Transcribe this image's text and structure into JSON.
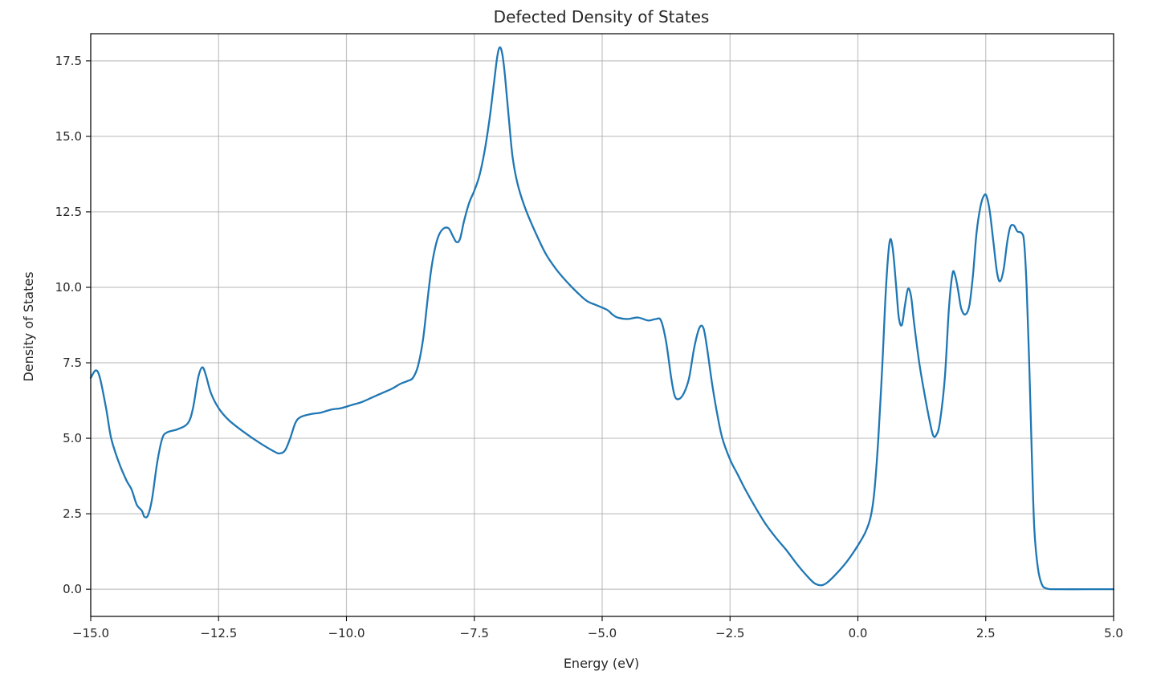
{
  "chart_data": {
    "type": "line",
    "title": "Defected Density of States",
    "xlabel": "Energy (eV)",
    "ylabel": "Density of States",
    "xlim": [
      -15.0,
      5.0
    ],
    "ylim": [
      -0.9,
      18.4
    ],
    "grid": true,
    "legend": "none",
    "xticks": [
      {
        "value": -15.0,
        "label": "−15.0"
      },
      {
        "value": -12.5,
        "label": "−12.5"
      },
      {
        "value": -10.0,
        "label": "−10.0"
      },
      {
        "value": -7.5,
        "label": "−7.5"
      },
      {
        "value": -5.0,
        "label": "−5.0"
      },
      {
        "value": -2.5,
        "label": "−2.5"
      },
      {
        "value": 0.0,
        "label": "0.0"
      },
      {
        "value": 2.5,
        "label": "2.5"
      },
      {
        "value": 5.0,
        "label": "5.0"
      }
    ],
    "yticks": [
      {
        "value": 0.0,
        "label": "0.0"
      },
      {
        "value": 2.5,
        "label": "2.5"
      },
      {
        "value": 5.0,
        "label": "5.0"
      },
      {
        "value": 7.5,
        "label": "7.5"
      },
      {
        "value": 10.0,
        "label": "10.0"
      },
      {
        "value": 12.5,
        "label": "12.5"
      },
      {
        "value": 15.0,
        "label": "15.0"
      },
      {
        "value": 17.5,
        "label": "17.5"
      }
    ],
    "series": [
      {
        "color": "#1f77b4",
        "points": [
          [
            -15.0,
            7.0
          ],
          [
            -14.9,
            7.25
          ],
          [
            -14.82,
            7.0
          ],
          [
            -14.7,
            6.0
          ],
          [
            -14.6,
            5.0
          ],
          [
            -14.45,
            4.2
          ],
          [
            -14.3,
            3.6
          ],
          [
            -14.2,
            3.3
          ],
          [
            -14.1,
            2.8
          ],
          [
            -14.0,
            2.6
          ],
          [
            -13.95,
            2.4
          ],
          [
            -13.88,
            2.45
          ],
          [
            -13.8,
            3.0
          ],
          [
            -13.7,
            4.2
          ],
          [
            -13.6,
            5.0
          ],
          [
            -13.5,
            5.2
          ],
          [
            -13.3,
            5.3
          ],
          [
            -13.1,
            5.5
          ],
          [
            -13.0,
            6.0
          ],
          [
            -12.9,
            7.0
          ],
          [
            -12.82,
            7.35
          ],
          [
            -12.75,
            7.1
          ],
          [
            -12.65,
            6.5
          ],
          [
            -12.5,
            6.0
          ],
          [
            -12.3,
            5.6
          ],
          [
            -12.0,
            5.2
          ],
          [
            -11.7,
            4.85
          ],
          [
            -11.4,
            4.55
          ],
          [
            -11.3,
            4.5
          ],
          [
            -11.2,
            4.6
          ],
          [
            -11.1,
            5.0
          ],
          [
            -11.0,
            5.5
          ],
          [
            -10.9,
            5.7
          ],
          [
            -10.7,
            5.8
          ],
          [
            -10.5,
            5.85
          ],
          [
            -10.3,
            5.95
          ],
          [
            -10.1,
            6.0
          ],
          [
            -9.9,
            6.1
          ],
          [
            -9.7,
            6.2
          ],
          [
            -9.5,
            6.35
          ],
          [
            -9.3,
            6.5
          ],
          [
            -9.1,
            6.65
          ],
          [
            -8.95,
            6.8
          ],
          [
            -8.8,
            6.9
          ],
          [
            -8.7,
            7.0
          ],
          [
            -8.6,
            7.4
          ],
          [
            -8.5,
            8.3
          ],
          [
            -8.42,
            9.5
          ],
          [
            -8.35,
            10.5
          ],
          [
            -8.28,
            11.2
          ],
          [
            -8.2,
            11.7
          ],
          [
            -8.1,
            11.95
          ],
          [
            -8.0,
            11.95
          ],
          [
            -7.92,
            11.7
          ],
          [
            -7.85,
            11.5
          ],
          [
            -7.78,
            11.6
          ],
          [
            -7.7,
            12.2
          ],
          [
            -7.6,
            12.8
          ],
          [
            -7.5,
            13.2
          ],
          [
            -7.4,
            13.7
          ],
          [
            -7.3,
            14.5
          ],
          [
            -7.2,
            15.6
          ],
          [
            -7.12,
            16.7
          ],
          [
            -7.05,
            17.65
          ],
          [
            -7.0,
            17.95
          ],
          [
            -6.95,
            17.7
          ],
          [
            -6.9,
            17.0
          ],
          [
            -6.82,
            15.5
          ],
          [
            -6.75,
            14.3
          ],
          [
            -6.65,
            13.4
          ],
          [
            -6.5,
            12.6
          ],
          [
            -6.3,
            11.8
          ],
          [
            -6.1,
            11.1
          ],
          [
            -5.9,
            10.6
          ],
          [
            -5.7,
            10.2
          ],
          [
            -5.5,
            9.85
          ],
          [
            -5.3,
            9.55
          ],
          [
            -5.1,
            9.4
          ],
          [
            -4.9,
            9.25
          ],
          [
            -4.8,
            9.1
          ],
          [
            -4.7,
            9.0
          ],
          [
            -4.5,
            8.95
          ],
          [
            -4.3,
            9.0
          ],
          [
            -4.1,
            8.9
          ],
          [
            -3.95,
            8.95
          ],
          [
            -3.85,
            8.9
          ],
          [
            -3.75,
            8.2
          ],
          [
            -3.65,
            7.0
          ],
          [
            -3.58,
            6.4
          ],
          [
            -3.5,
            6.3
          ],
          [
            -3.4,
            6.5
          ],
          [
            -3.3,
            7.0
          ],
          [
            -3.2,
            8.0
          ],
          [
            -3.1,
            8.65
          ],
          [
            -3.02,
            8.65
          ],
          [
            -2.95,
            8.0
          ],
          [
            -2.85,
            6.8
          ],
          [
            -2.75,
            5.8
          ],
          [
            -2.65,
            5.0
          ],
          [
            -2.5,
            4.3
          ],
          [
            -2.35,
            3.8
          ],
          [
            -2.2,
            3.3
          ],
          [
            -2.0,
            2.7
          ],
          [
            -1.8,
            2.15
          ],
          [
            -1.6,
            1.7
          ],
          [
            -1.4,
            1.3
          ],
          [
            -1.2,
            0.85
          ],
          [
            -1.0,
            0.45
          ],
          [
            -0.85,
            0.2
          ],
          [
            -0.72,
            0.13
          ],
          [
            -0.6,
            0.22
          ],
          [
            -0.4,
            0.55
          ],
          [
            -0.2,
            0.95
          ],
          [
            0.0,
            1.45
          ],
          [
            0.15,
            1.9
          ],
          [
            0.25,
            2.4
          ],
          [
            0.32,
            3.2
          ],
          [
            0.4,
            5.0
          ],
          [
            0.48,
            7.5
          ],
          [
            0.55,
            10.0
          ],
          [
            0.62,
            11.5
          ],
          [
            0.68,
            11.3
          ],
          [
            0.75,
            10.0
          ],
          [
            0.8,
            9.0
          ],
          [
            0.86,
            8.75
          ],
          [
            0.92,
            9.4
          ],
          [
            0.98,
            9.95
          ],
          [
            1.04,
            9.7
          ],
          [
            1.1,
            8.8
          ],
          [
            1.2,
            7.5
          ],
          [
            1.3,
            6.5
          ],
          [
            1.4,
            5.6
          ],
          [
            1.47,
            5.1
          ],
          [
            1.53,
            5.1
          ],
          [
            1.6,
            5.5
          ],
          [
            1.7,
            7.0
          ],
          [
            1.78,
            9.3
          ],
          [
            1.85,
            10.45
          ],
          [
            1.9,
            10.4
          ],
          [
            1.96,
            9.9
          ],
          [
            2.02,
            9.3
          ],
          [
            2.1,
            9.1
          ],
          [
            2.18,
            9.4
          ],
          [
            2.25,
            10.4
          ],
          [
            2.32,
            11.8
          ],
          [
            2.4,
            12.7
          ],
          [
            2.47,
            13.05
          ],
          [
            2.52,
            13.0
          ],
          [
            2.58,
            12.5
          ],
          [
            2.65,
            11.5
          ],
          [
            2.72,
            10.5
          ],
          [
            2.78,
            10.2
          ],
          [
            2.85,
            10.6
          ],
          [
            2.92,
            11.5
          ],
          [
            2.98,
            12.0
          ],
          [
            3.05,
            12.05
          ],
          [
            3.12,
            11.85
          ],
          [
            3.2,
            11.8
          ],
          [
            3.25,
            11.5
          ],
          [
            3.3,
            10.0
          ],
          [
            3.35,
            7.5
          ],
          [
            3.4,
            4.5
          ],
          [
            3.45,
            2.0
          ],
          [
            3.52,
            0.7
          ],
          [
            3.6,
            0.15
          ],
          [
            3.7,
            0.02
          ],
          [
            3.85,
            0.0
          ],
          [
            4.5,
            0.0
          ],
          [
            5.0,
            0.0
          ]
        ]
      }
    ]
  }
}
